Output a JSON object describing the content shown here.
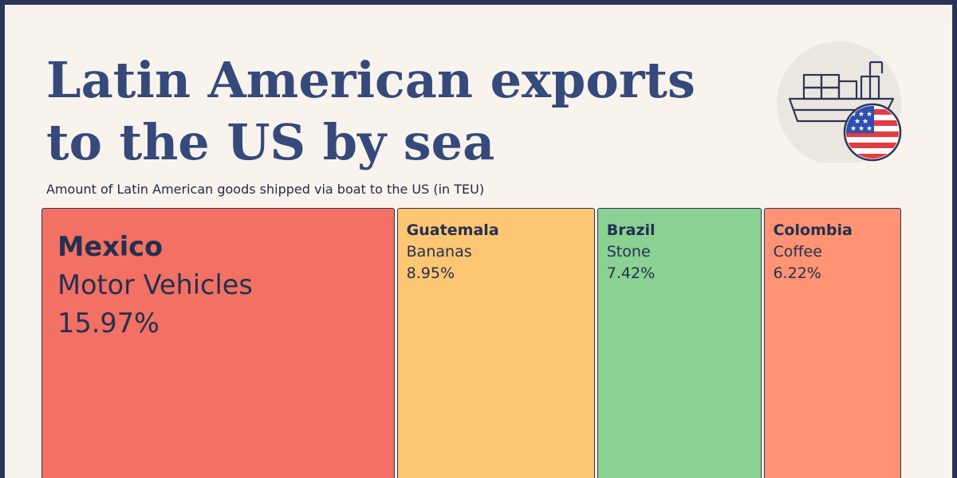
{
  "title": "Latin American exports to the US by sea",
  "subtitle": "Amount of Latin American goods shipped via boat to the US (in TEU)",
  "icon": "cargo-ship-with-us-flag-icon",
  "chart_data": {
    "type": "treemap",
    "title": "Latin American exports to the US by sea",
    "subtitle": "Amount of Latin American goods shipped via boat to the US (in TEU)",
    "items": [
      {
        "country": "Mexico",
        "product": "Motor Vehicles",
        "share_label": "15.97%",
        "value": 15.97,
        "color": "#f27064"
      },
      {
        "country": "Guatemala",
        "product": "Bananas",
        "share_label": "8.95%",
        "value": 8.95,
        "color": "#fdc673"
      },
      {
        "country": "Brazil",
        "product": "Stone",
        "share_label": "7.42%",
        "value": 7.42,
        "color": "#8ad193"
      },
      {
        "country": "Colombia",
        "product": "Coffee",
        "share_label": "6.22%",
        "value": 6.22,
        "color": "#ff9374"
      }
    ]
  }
}
